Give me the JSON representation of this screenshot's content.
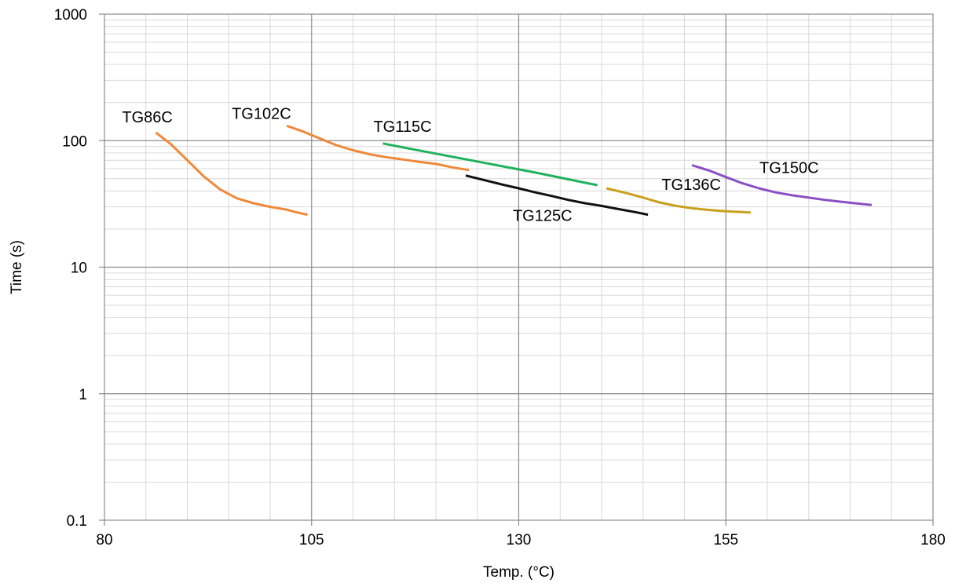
{
  "chart_data": {
    "type": "line",
    "title": "",
    "xlabel": "Temp. (°C)",
    "ylabel": "Time (s)",
    "xlim": [
      80,
      180
    ],
    "ylim": [
      0.1,
      1000
    ],
    "yscale": "log",
    "xticks": [
      "80",
      "105",
      "130",
      "155",
      "180"
    ],
    "yticks": [
      "0.1",
      "1",
      "10",
      "100",
      "1000"
    ],
    "grid": true,
    "legend": "none",
    "series": [
      {
        "name": "TG86C",
        "color": "#f0883a",
        "points": [
          [
            86.2,
            116
          ],
          [
            88,
            94
          ],
          [
            90,
            70
          ],
          [
            92,
            52
          ],
          [
            94,
            41
          ],
          [
            96,
            35
          ],
          [
            98,
            32
          ],
          [
            100,
            30
          ],
          [
            102,
            28.5
          ],
          [
            103,
            27.3
          ],
          [
            104.5,
            26
          ]
        ]
      },
      {
        "name": "TG102C",
        "color": "#f0883a",
        "points": [
          [
            102,
            131
          ],
          [
            104,
            118
          ],
          [
            106,
            104
          ],
          [
            108,
            92
          ],
          [
            110,
            84
          ],
          [
            112,
            78
          ],
          [
            114,
            74
          ],
          [
            116,
            71
          ],
          [
            118,
            68
          ],
          [
            120,
            65.5
          ],
          [
            122,
            61.5
          ],
          [
            124,
            58.5
          ]
        ]
      },
      {
        "name": "TG115C",
        "color": "#21b15c",
        "points": [
          [
            113.6,
            95
          ],
          [
            117,
            86
          ],
          [
            120,
            79
          ],
          [
            123,
            72.5
          ],
          [
            126,
            66.5
          ],
          [
            129,
            61
          ],
          [
            132,
            56
          ],
          [
            135,
            51
          ],
          [
            138,
            46.5
          ],
          [
            139.5,
            44.5
          ]
        ]
      },
      {
        "name": "TG125C",
        "color": "#111111",
        "points": [
          [
            123.6,
            53
          ],
          [
            126,
            48.5
          ],
          [
            128,
            45
          ],
          [
            130,
            42
          ],
          [
            132,
            39
          ],
          [
            134,
            36.5
          ],
          [
            136,
            34
          ],
          [
            138,
            32
          ],
          [
            140,
            30.5
          ],
          [
            142,
            28.8
          ],
          [
            144,
            27.3
          ],
          [
            145.6,
            26
          ]
        ]
      },
      {
        "name": "TG136C",
        "color": "#c8a11c",
        "points": [
          [
            140.6,
            42
          ],
          [
            143,
            38.5
          ],
          [
            145,
            35.5
          ],
          [
            147,
            32.5
          ],
          [
            149,
            30.5
          ],
          [
            151,
            29.2
          ],
          [
            153,
            28.3
          ],
          [
            155,
            27.7
          ],
          [
            157,
            27.3
          ],
          [
            158,
            27
          ]
        ]
      },
      {
        "name": "TG150C",
        "color": "#8a4fc4",
        "points": [
          [
            150.9,
            64
          ],
          [
            153,
            58
          ],
          [
            155,
            51.5
          ],
          [
            157,
            46
          ],
          [
            159,
            42
          ],
          [
            161,
            39
          ],
          [
            163,
            37
          ],
          [
            165,
            35.5
          ],
          [
            167,
            34
          ],
          [
            169,
            32.8
          ],
          [
            171,
            31.8
          ],
          [
            172.6,
            31
          ]
        ]
      }
    ],
    "annotations": [
      {
        "text": "TG86C",
        "series": "TG86C"
      },
      {
        "text": "TG102C",
        "series": "TG102C"
      },
      {
        "text": "TG115C",
        "series": "TG115C"
      },
      {
        "text": "TG125C",
        "series": "TG125C"
      },
      {
        "text": "TG136C",
        "series": "TG136C"
      },
      {
        "text": "TG150C",
        "series": "TG150C"
      }
    ]
  }
}
